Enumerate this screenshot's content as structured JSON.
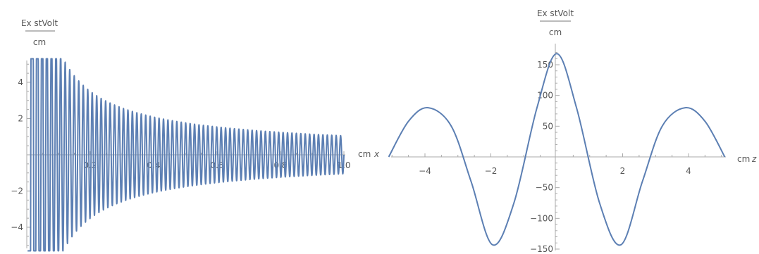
{
  "colors": {
    "line": "#5c7fb3",
    "axis": "#aaaaaa",
    "text": "#555555"
  },
  "chart_data": [
    {
      "type": "line",
      "title": "",
      "ylabel_numerator": "Ex stVolt",
      "ylabel_denominator": "cm",
      "xlabel_unit": "cm",
      "xlabel_var": "x",
      "xlim": [
        0,
        1.0
      ],
      "ylim": [
        -5.3,
        5.3
      ],
      "grid": false,
      "x_ticks": [
        "0.2",
        "0.4",
        "0.6",
        "0.8",
        "1.0"
      ],
      "y_ticks": [
        "-4",
        "-2",
        "2",
        "4"
      ],
      "series": [
        {
          "function": "E(x) = 1.05 * sin(2*pi*f(x)) / x^0.75, clipped to y-range",
          "samples_x": [
            0.05,
            0.1,
            0.2,
            0.3,
            0.4,
            0.5,
            0.6,
            0.7,
            0.8,
            0.9,
            1.0
          ],
          "envelope_amplitude": [
            5.3,
            5.3,
            4.3,
            3.1,
            2.7,
            2.2,
            1.9,
            1.7,
            1.5,
            1.4,
            1.05
          ],
          "oscillation_cycles_per_cm": 72
        }
      ]
    },
    {
      "type": "line",
      "title": "",
      "ylabel_numerator": "Ex stVolt",
      "ylabel_denominator": "cm",
      "xlabel_unit": "cm",
      "xlabel_var": "z",
      "xlim": [
        -5.2,
        5.2
      ],
      "ylim": [
        -150,
        170
      ],
      "grid": false,
      "x_ticks": [
        "-4",
        "-2",
        "2",
        "4"
      ],
      "y_ticks": [
        "-150",
        "-100",
        "-50",
        "50",
        "100",
        "150"
      ],
      "series": [
        {
          "x": [
            -5.1,
            -4.5,
            -3.9,
            -3.2,
            -2.6,
            -1.95,
            -1.3,
            -0.6,
            0,
            0.6,
            1.3,
            1.95,
            2.6,
            3.2,
            3.9,
            4.5,
            5.1
          ],
          "y": [
            0,
            58,
            80,
            50,
            -40,
            -143,
            -75,
            80,
            168,
            80,
            -75,
            -143,
            -40,
            50,
            80,
            58,
            0
          ]
        }
      ]
    }
  ]
}
